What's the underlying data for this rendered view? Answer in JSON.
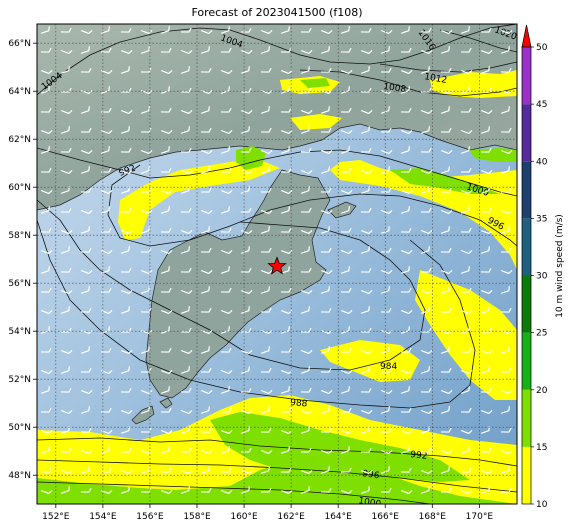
{
  "title": "Forecast of 2023041500 (f108)",
  "map": {
    "lon_range": [
      151.2,
      171.6
    ],
    "lat_range": [
      46.8,
      66.8
    ],
    "lon_ticks": [
      {
        "v": 152,
        "label": "152°E"
      },
      {
        "v": 154,
        "label": "154°E"
      },
      {
        "v": 156,
        "label": "156°E"
      },
      {
        "v": 158,
        "label": "158°E"
      },
      {
        "v": 160,
        "label": "160°E"
      },
      {
        "v": 162,
        "label": "162°E"
      },
      {
        "v": 164,
        "label": "164°E"
      },
      {
        "v": 166,
        "label": "166°E"
      },
      {
        "v": 168,
        "label": "168°E"
      },
      {
        "v": 170,
        "label": "170°E"
      }
    ],
    "lat_ticks": [
      {
        "v": 48,
        "label": "48°N"
      },
      {
        "v": 50,
        "label": "50°N"
      },
      {
        "v": 52,
        "label": "52°N"
      },
      {
        "v": 54,
        "label": "54°N"
      },
      {
        "v": 56,
        "label": "56°N"
      },
      {
        "v": 58,
        "label": "58°N"
      },
      {
        "v": 60,
        "label": "60°N"
      },
      {
        "v": 62,
        "label": "62°N"
      },
      {
        "v": 64,
        "label": "64°N"
      },
      {
        "v": 66,
        "label": "66°N"
      }
    ],
    "marker": {
      "lon": 161.4,
      "lat": 56.7,
      "symbol": "red-star"
    },
    "isobar_labels": [
      "1004",
      "1004",
      "1008",
      "1012",
      "1016",
      "1020",
      "992",
      "1000",
      "996",
      "984",
      "988",
      "992",
      "996",
      "1000"
    ]
  },
  "colorbar": {
    "label": "10 m wind speed (m/s)",
    "ticks": [
      "10",
      "15",
      "20",
      "25",
      "30",
      "35",
      "40",
      "45",
      "50"
    ],
    "colors": [
      "#ffff00",
      "#7fe000",
      "#18b018",
      "#0a7a0a",
      "#1f5f7f",
      "#1f3f6f",
      "#552a9a",
      "#9a32c8"
    ],
    "extend_color": "#ff0000"
  }
}
